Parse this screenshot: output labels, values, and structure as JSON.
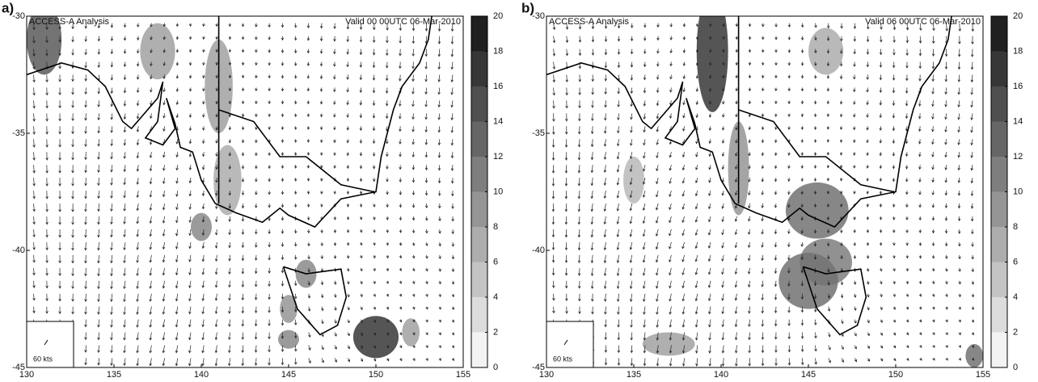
{
  "panels": [
    {
      "label": "a)",
      "title": "ACCESS-A Analysis",
      "valid": "Valid 00 00UTC 06-Mar-2010",
      "scale_label": "60 kts",
      "xlim": [
        130,
        155
      ],
      "xticks": [
        130,
        135,
        140,
        145,
        150,
        155
      ],
      "ylim": [
        -45,
        -30
      ],
      "yticks": [
        -45,
        -40,
        -35,
        -30
      ],
      "colorbar_lim": [
        0,
        20
      ],
      "colorbar_ticks": [
        0,
        2,
        4,
        6,
        8,
        10,
        12,
        14,
        16,
        18,
        20
      ]
    },
    {
      "label": "b)",
      "title": "ACCESS-A Analysis",
      "valid": "Valid 06 00UTC 06-Mar-2010",
      "scale_label": "60 kts",
      "xlim": [
        130,
        155
      ],
      "xticks": [
        130,
        135,
        140,
        145,
        150,
        155
      ],
      "ylim": [
        -45,
        -30
      ],
      "yticks": [
        -45,
        -40,
        -35,
        -30
      ],
      "colorbar_lim": [
        0,
        20
      ],
      "colorbar_ticks": [
        0,
        2,
        4,
        6,
        8,
        10,
        12,
        14,
        16,
        18,
        20
      ]
    }
  ]
}
